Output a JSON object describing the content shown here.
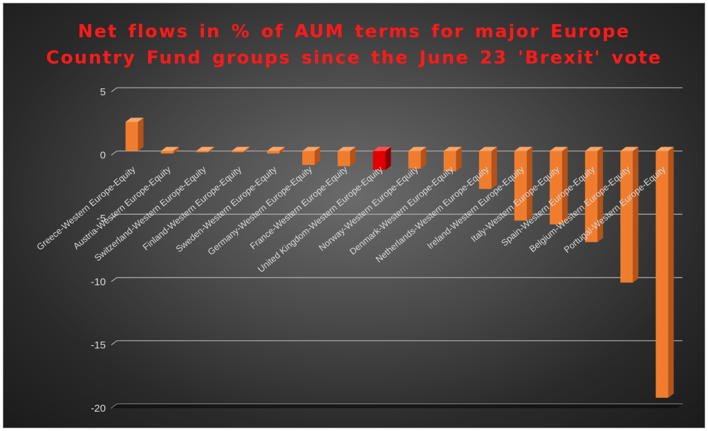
{
  "chart_data": {
    "type": "bar",
    "title_lines": [
      "Net flows in % of AUM terms for major  Europe",
      "Country  Fund  groups  since  the  June  23  'Brexit'  vote"
    ],
    "xlabel": "",
    "ylabel": "",
    "ylim": [
      -20,
      5
    ],
    "yticks": [
      5,
      0,
      -5,
      -10,
      -15,
      -20
    ],
    "grid": true,
    "legend": "none",
    "categories": [
      "Greece-Western Europe-Equity",
      "Austria-Western Europe-Equity",
      "Switzerland-Western Europe-Equity",
      "Finland-Western Europe-Equity",
      "Sweden-Western Europe-Equity",
      "Germany-Western Europe-Equity",
      "France-Western Europe-Equity",
      "United Kingdom-Western Europe-Equity",
      "Norway-Western Europe-Equity",
      "Denmark-Western Europe-Equity",
      "Netherlands-Western Europe-Equity",
      "Ireland-Western Europe-Equity",
      "Italy-Western Europe-Equity",
      "Spain-Western Europe-Equity",
      "Belgium-Western Europe-Equity",
      "Portugal-Western Europe-Equity"
    ],
    "values": [
      2.3,
      -0.2,
      -0.1,
      -0.1,
      -0.2,
      -1.1,
      -1.2,
      -1.5,
      -1.4,
      -1.6,
      -3.0,
      -5.5,
      -5.8,
      -7.2,
      -10.4,
      -19.5
    ],
    "highlight_index": 7,
    "colors": {
      "bar_front": "#f07d2e",
      "bar_side": "#b5531a",
      "bar_top": "#f7a66a",
      "highlight_front": "#e00000",
      "highlight_side": "#8e0000",
      "highlight_top": "#ff5050",
      "title": "#ff1a1a",
      "text": "#d9d9d9",
      "grid": "#a8a8a8"
    }
  }
}
